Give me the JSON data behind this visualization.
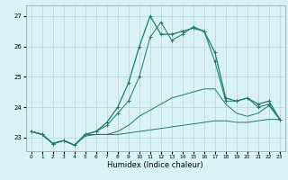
{
  "xlabel": "Humidex (Indice chaleur)",
  "bg_color": "#d9f2f2",
  "grid_color": "#b8dede",
  "line_color": "#1a7a6e",
  "x_values": [
    0,
    1,
    2,
    3,
    4,
    5,
    6,
    7,
    8,
    9,
    10,
    11,
    12,
    13,
    14,
    15,
    16,
    17,
    18,
    19,
    20,
    21,
    22,
    23
  ],
  "series_main": [
    23.2,
    23.1,
    22.8,
    22.9,
    22.75,
    23.1,
    23.2,
    23.5,
    24.0,
    24.8,
    26.0,
    27.0,
    26.4,
    26.4,
    26.5,
    26.6,
    26.5,
    25.8,
    24.3,
    24.2,
    24.3,
    24.1,
    24.2,
    23.6
  ],
  "series_b": [
    23.2,
    23.1,
    22.8,
    22.9,
    22.75,
    23.1,
    23.2,
    23.4,
    23.8,
    24.2,
    25.0,
    26.3,
    26.8,
    26.2,
    26.4,
    26.65,
    26.5,
    25.5,
    24.2,
    24.2,
    24.3,
    24.0,
    24.1,
    23.6
  ],
  "series_c": [
    23.2,
    23.1,
    22.8,
    22.9,
    22.75,
    23.1,
    23.1,
    23.1,
    23.2,
    23.4,
    23.7,
    23.9,
    24.1,
    24.3,
    24.4,
    24.5,
    24.6,
    24.6,
    24.1,
    23.8,
    23.7,
    23.8,
    24.05,
    23.6
  ],
  "series_flat": [
    23.2,
    23.1,
    22.8,
    22.9,
    22.75,
    23.05,
    23.1,
    23.1,
    23.1,
    23.15,
    23.2,
    23.25,
    23.3,
    23.35,
    23.4,
    23.45,
    23.5,
    23.55,
    23.55,
    23.5,
    23.5,
    23.55,
    23.6,
    23.6
  ],
  "ylim_min": 22.55,
  "ylim_max": 27.35,
  "yticks": [
    23,
    24,
    25,
    26,
    27
  ],
  "xticks": [
    0,
    1,
    2,
    3,
    4,
    5,
    6,
    7,
    8,
    9,
    10,
    11,
    12,
    13,
    14,
    15,
    16,
    17,
    18,
    19,
    20,
    21,
    22,
    23
  ]
}
